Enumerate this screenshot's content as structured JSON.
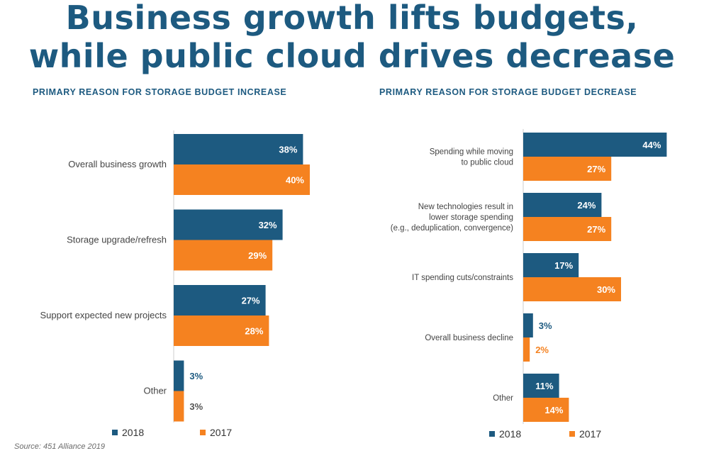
{
  "title": {
    "line1": "Business growth lifts budgets,",
    "line2": "while public cloud drives decrease"
  },
  "source": "Source: 451 Alliance 2019",
  "colors": {
    "y2018": "#1d5a80",
    "y2017": "#f58220",
    "title": "#1d5a80",
    "label": "#444444"
  },
  "chart_data": [
    {
      "type": "bar",
      "orientation": "horizontal",
      "title": "PRIMARY REASON FOR STORAGE BUDGET INCREASE",
      "categories": [
        "Overall business growth",
        "Storage upgrade/refresh",
        "Support expected new projects",
        "Other"
      ],
      "series": [
        {
          "name": "2018",
          "values": [
            38,
            32,
            27,
            3
          ]
        },
        {
          "name": "2017",
          "values": [
            40,
            29,
            28,
            3
          ]
        }
      ],
      "value_labels": {
        "2018": [
          "38%",
          "32%",
          "27%",
          "3%"
        ],
        "2017": [
          "40%",
          "29%",
          "28%",
          "3%"
        ]
      },
      "legend": "bottom",
      "grid": false
    },
    {
      "type": "bar",
      "orientation": "horizontal",
      "title": "PRIMARY REASON FOR STORAGE BUDGET DECREASE",
      "categories": [
        "Spending while moving to public cloud",
        "New technologies result in lower storage spending (e.g., deduplication, convergence)",
        "IT spending cuts/constraints",
        "Overall business decline",
        "Other"
      ],
      "category_lines": [
        [
          "Spending while moving",
          "to public cloud"
        ],
        [
          "New technologies result in",
          "lower storage spending",
          "(e.g., deduplication, convergence)"
        ],
        [
          "IT spending cuts/constraints"
        ],
        [
          "Overall business decline"
        ],
        [
          "Other"
        ]
      ],
      "series": [
        {
          "name": "2018",
          "values": [
            44,
            24,
            17,
            3,
            11
          ]
        },
        {
          "name": "2017",
          "values": [
            27,
            27,
            30,
            2,
            14
          ]
        }
      ],
      "value_labels": {
        "2018": [
          "44%",
          "24%",
          "17%",
          "3%",
          "11%"
        ],
        "2017": [
          "27%",
          "27%",
          "30%",
          "2%",
          "14%"
        ]
      },
      "legend": "bottom",
      "grid": false
    }
  ]
}
